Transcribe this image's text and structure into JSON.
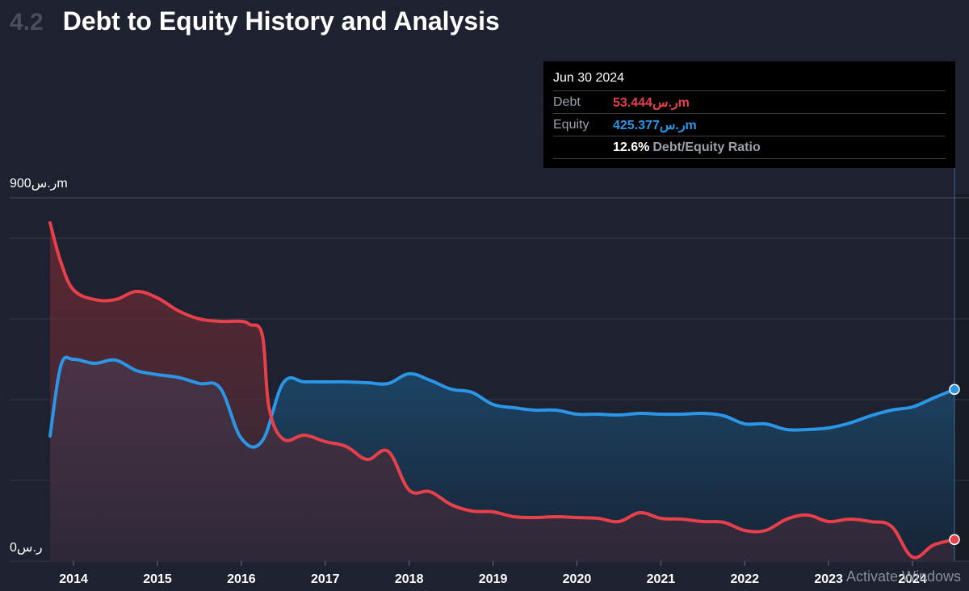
{
  "header": {
    "section_number": "4.2",
    "title": "Debt to Equity History and Analysis"
  },
  "tooltip": {
    "date": "Jun 30 2024",
    "debt_label": "Debt",
    "debt_value": "53.444ر.سm",
    "equity_label": "Equity",
    "equity_value": "425.377ر.سm",
    "ratio_value": "12.6%",
    "ratio_label": "Debt/Equity Ratio"
  },
  "y_axis": {
    "top_label": "900ر.سm",
    "bottom_label": "0ر.س"
  },
  "watermark": "Activate Windows",
  "colors": {
    "debt": "#e8404a",
    "equity": "#2b95e6",
    "background": "#1e2230"
  },
  "chart_data": {
    "type": "area",
    "ylim": [
      0,
      900
    ],
    "x_ticks": [
      "2014",
      "2015",
      "2016",
      "2017",
      "2018",
      "2019",
      "2020",
      "2021",
      "2022",
      "2023",
      "2024"
    ],
    "x_range": [
      2013.72,
      2024.5
    ],
    "series": [
      {
        "name": "Debt",
        "x": [
          2013.72,
          2013.85,
          2014.0,
          2014.25,
          2014.5,
          2014.75,
          2015.0,
          2015.25,
          2015.5,
          2015.75,
          2016.0,
          2016.1,
          2016.25,
          2016.33,
          2016.5,
          2016.75,
          2017.0,
          2017.25,
          2017.5,
          2017.75,
          2018.0,
          2018.25,
          2018.5,
          2018.75,
          2019.0,
          2019.25,
          2019.5,
          2019.75,
          2020.0,
          2020.25,
          2020.5,
          2020.75,
          2021.0,
          2021.25,
          2021.5,
          2021.75,
          2022.0,
          2022.25,
          2022.5,
          2022.75,
          2023.0,
          2023.25,
          2023.5,
          2023.75,
          2024.0,
          2024.25,
          2024.5
        ],
        "values": [
          838,
          740,
          672,
          648,
          648,
          668,
          652,
          620,
          600,
          594,
          594,
          586,
          560,
          380,
          302,
          312,
          296,
          284,
          252,
          272,
          176,
          172,
          140,
          124,
          122,
          110,
          108,
          110,
          108,
          106,
          98,
          120,
          106,
          104,
          98,
          96,
          76,
          76,
          104,
          114,
          98,
          104,
          98,
          86,
          10,
          40,
          53.4
        ]
      },
      {
        "name": "Equity",
        "x": [
          2013.72,
          2013.85,
          2014.0,
          2014.25,
          2014.5,
          2014.75,
          2015.0,
          2015.25,
          2015.5,
          2015.75,
          2016.0,
          2016.25,
          2016.5,
          2016.75,
          2017.0,
          2017.25,
          2017.5,
          2017.75,
          2018.0,
          2018.25,
          2018.5,
          2018.75,
          2019.0,
          2019.25,
          2019.5,
          2019.75,
          2020.0,
          2020.25,
          2020.5,
          2020.75,
          2021.0,
          2021.25,
          2021.5,
          2021.75,
          2022.0,
          2022.25,
          2022.5,
          2022.75,
          2023.0,
          2023.25,
          2023.5,
          2023.75,
          2024.0,
          2024.25,
          2024.5
        ],
        "values": [
          310,
          485,
          500,
          490,
          498,
          472,
          462,
          455,
          440,
          428,
          304,
          298,
          442,
          444,
          444,
          444,
          442,
          440,
          464,
          448,
          426,
          418,
          388,
          380,
          374,
          374,
          364,
          364,
          362,
          366,
          364,
          364,
          366,
          360,
          340,
          340,
          326,
          326,
          330,
          342,
          360,
          374,
          382,
          404,
          425.4
        ]
      }
    ]
  }
}
